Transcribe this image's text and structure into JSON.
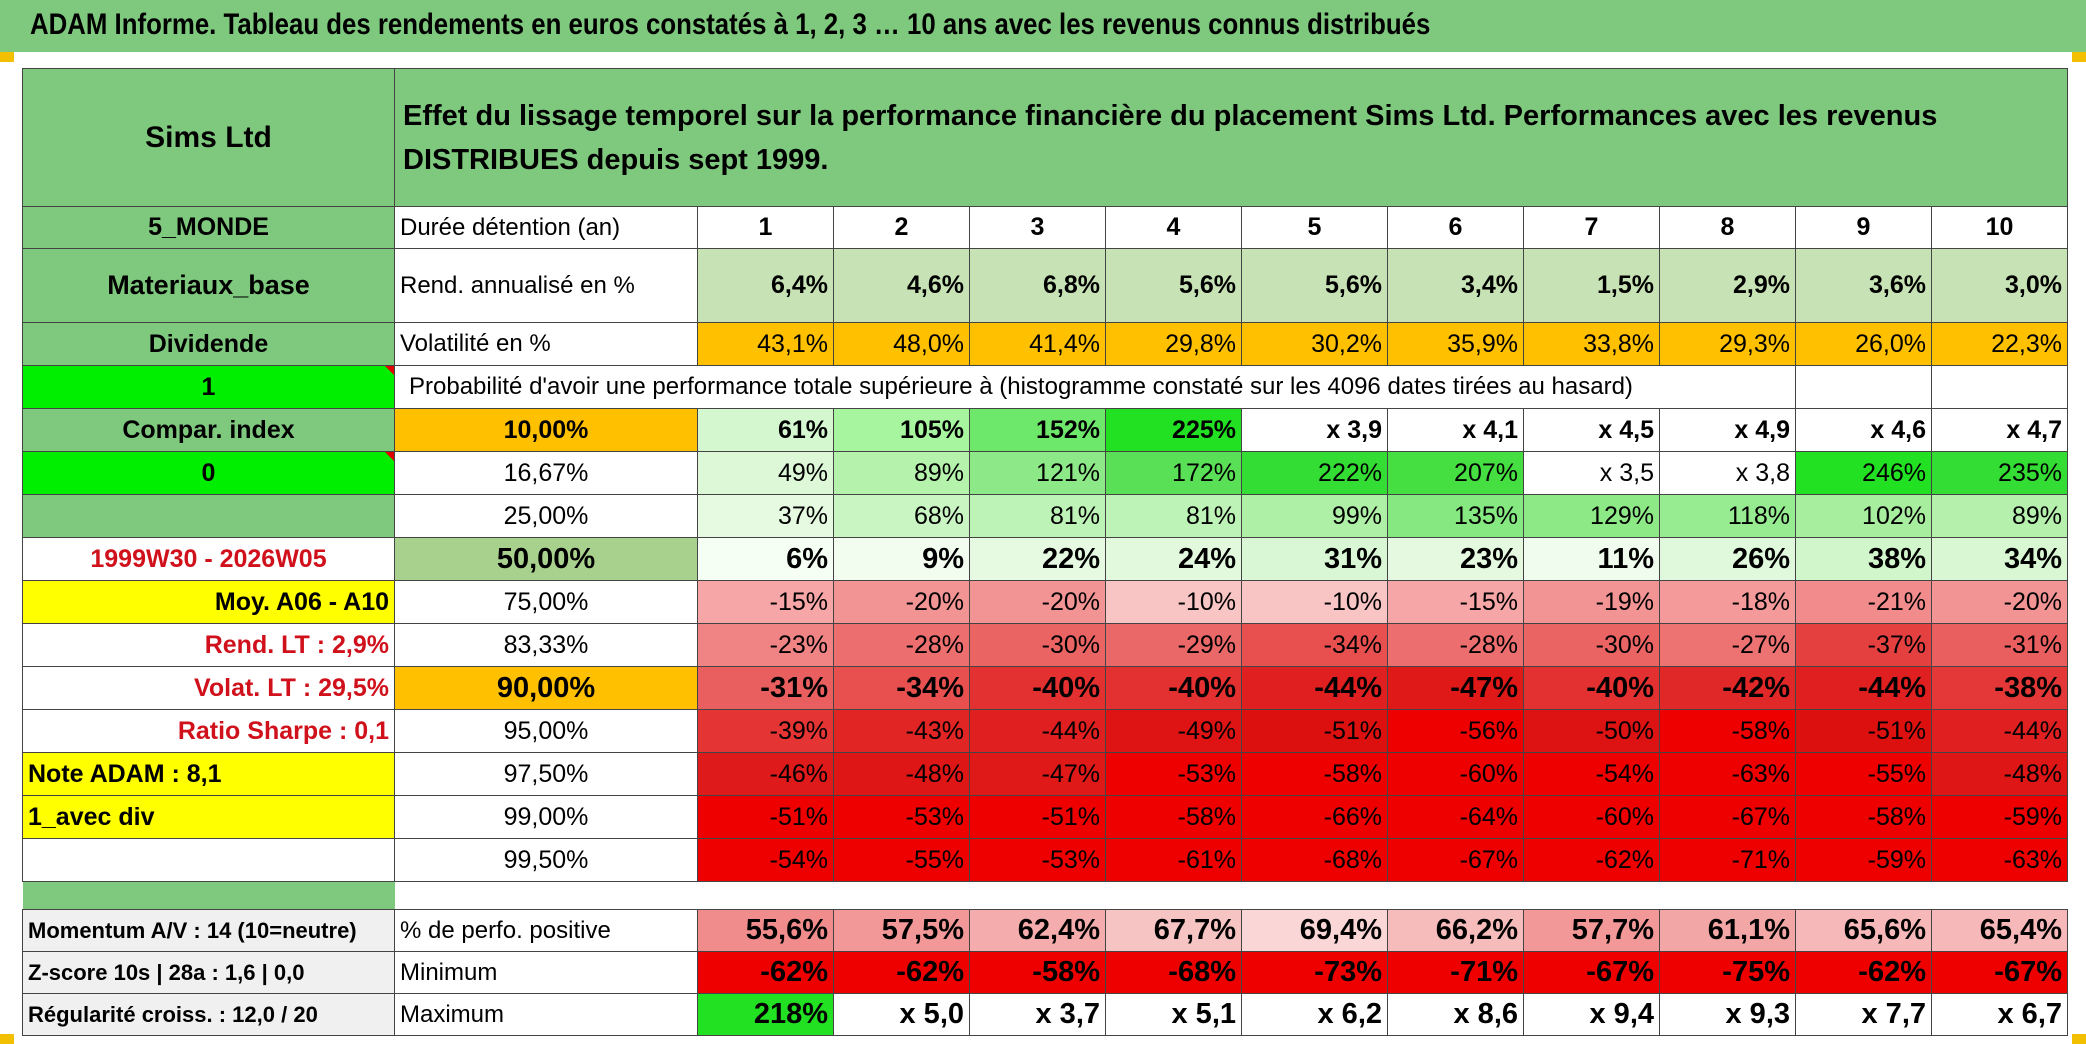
{
  "title": "ADAM Informe. Tableau des rendements en euros constatés à 1, 2, 3 … 10 ans avec les revenus connus distribués",
  "header": {
    "fund_name": "Sims Ltd",
    "description": "Effet du lissage temporel sur la performance financière du placement Sims Ltd. Performances avec les revenus DISTRIBUES depuis sept 1999."
  },
  "left": {
    "region": "5_MONDE",
    "sector": "Materiaux_base",
    "income_type": "Dividende",
    "selector_value": "1",
    "compar_label": "Compar. index",
    "compar_value": "0",
    "empty": "",
    "period": "1999W30 - 2026W05",
    "moy": "Moy. A06 - A10",
    "rend_lt": "Rend. LT :   2,9%",
    "volat_lt": "Volat. LT :   29,5%",
    "sharpe": "Ratio Sharpe :    0,1",
    "note": "Note ADAM : 8,1",
    "avec_div": "1_avec div"
  },
  "rows": {
    "duree": {
      "label": "Durée détention (an)",
      "values": [
        "1",
        "2",
        "3",
        "4",
        "5",
        "6",
        "7",
        "8",
        "9",
        "10"
      ]
    },
    "rend": {
      "label": "Rend. annualisé en %",
      "values": [
        "6,4%",
        "4,6%",
        "6,8%",
        "5,6%",
        "5,6%",
        "3,4%",
        "1,5%",
        "2,9%",
        "3,6%",
        "3,0%"
      ]
    },
    "vol": {
      "label": "Volatilité en %",
      "values": [
        "43,1%",
        "48,0%",
        "41,4%",
        "29,8%",
        "30,2%",
        "35,9%",
        "33,8%",
        "29,3%",
        "26,0%",
        "22,3%"
      ],
      "colors": [
        "#ffc000",
        "#ffc000",
        "#ffc000",
        "#ffc000",
        "#ffc000",
        "#ffc000",
        "#ffc000",
        "#ffc000",
        "#ffc000",
        "#ffc000"
      ]
    },
    "prob_header": "Probabilité d'avoir une performance totale supérieure à (histogramme constaté sur les 4096 dates tirées au hasard)"
  },
  "percentiles": [
    {
      "p": "10,00%",
      "pcolor": "#ffc000",
      "bold": true,
      "values": [
        "61%",
        "105%",
        "152%",
        "225%",
        "x 3,9",
        "x 4,1",
        "x 4,5",
        "x 4,9",
        "x 4,6",
        "x 4,7"
      ],
      "colors": [
        "#d5f7d0",
        "#a8f5a0",
        "#6ee86a",
        "#22e022",
        "#ffffff",
        "#ffffff",
        "#ffffff",
        "#ffffff",
        "#ffffff",
        "#ffffff"
      ]
    },
    {
      "p": "16,67%",
      "pcolor": "#ffffff",
      "bold": false,
      "values": [
        "49%",
        "89%",
        "121%",
        "172%",
        "222%",
        "207%",
        "x 3,5",
        "x 3,8",
        "246%",
        "235%"
      ],
      "colors": [
        "#dcf8d6",
        "#b5f3ad",
        "#8de888",
        "#5ae056",
        "#33dd33",
        "#45df41",
        "#ffffff",
        "#ffffff",
        "#22e022",
        "#33dd33"
      ]
    },
    {
      "p": "25,00%",
      "pcolor": "#ffffff",
      "bold": false,
      "values": [
        "37%",
        "68%",
        "81%",
        "81%",
        "99%",
        "135%",
        "129%",
        "118%",
        "102%",
        "89%"
      ],
      "colors": [
        "#e6fae2",
        "#c9f5c3",
        "#bdf3b7",
        "#bdf3b7",
        "#aef0a6",
        "#86e880",
        "#8ce986",
        "#97eb91",
        "#a8ee9f",
        "#b5f0ad"
      ]
    },
    {
      "p": "50,00%",
      "pcolor": "#a9d18e",
      "bold": true,
      "big": true,
      "values": [
        "6%",
        "9%",
        "22%",
        "24%",
        "31%",
        "23%",
        "11%",
        "26%",
        "38%",
        "34%"
      ],
      "colors": [
        "#f6fff4",
        "#f2fdf0",
        "#e6fae2",
        "#e2f9de",
        "#d9f7d4",
        "#e4f9e0",
        "#f0fcee",
        "#e0f8dc",
        "#d2f6cc",
        "#d8f7d2"
      ]
    },
    {
      "p": "75,00%",
      "pcolor": "#ffffff",
      "bold": false,
      "values": [
        "-15%",
        "-20%",
        "-20%",
        "-10%",
        "-10%",
        "-15%",
        "-19%",
        "-18%",
        "-21%",
        "-20%"
      ],
      "colors": [
        "#f6a6a6",
        "#f39494",
        "#f39494",
        "#f8c4c4",
        "#f8c4c4",
        "#f6a6a6",
        "#f39494",
        "#f49a9a",
        "#f28c8c",
        "#f39494"
      ]
    },
    {
      "p": "83,33%",
      "pcolor": "#ffffff",
      "bold": false,
      "values": [
        "-23%",
        "-28%",
        "-30%",
        "-29%",
        "-34%",
        "-28%",
        "-30%",
        "-27%",
        "-37%",
        "-31%"
      ],
      "colors": [
        "#f08484",
        "#ec6e6e",
        "#ea6464",
        "#eb6868",
        "#e85050",
        "#ec6e6e",
        "#ea6464",
        "#ed7272",
        "#e54040",
        "#e95e5e"
      ]
    },
    {
      "p": "90,00%",
      "pcolor": "#ffc000",
      "bold": true,
      "big": true,
      "values": [
        "-31%",
        "-34%",
        "-40%",
        "-40%",
        "-44%",
        "-47%",
        "-40%",
        "-42%",
        "-44%",
        "-38%"
      ],
      "colors": [
        "#e95e5e",
        "#e85050",
        "#e33030",
        "#e33030",
        "#e02020",
        "#df1818",
        "#e33030",
        "#e12828",
        "#e02020",
        "#e43838"
      ]
    },
    {
      "p": "95,00%",
      "pcolor": "#ffffff",
      "bold": false,
      "values": [
        "-39%",
        "-43%",
        "-44%",
        "-49%",
        "-51%",
        "-56%",
        "-50%",
        "-58%",
        "-51%",
        "-44%"
      ],
      "colors": [
        "#e43434",
        "#e12424",
        "#e02020",
        "#de1414",
        "#dd1010",
        "#ee0000",
        "#dd1212",
        "#ee0000",
        "#dd1010",
        "#e02020"
      ]
    },
    {
      "p": "97,50%",
      "pcolor": "#ffffff",
      "bold": false,
      "values": [
        "-46%",
        "-48%",
        "-47%",
        "-53%",
        "-58%",
        "-60%",
        "-54%",
        "-63%",
        "-55%",
        "-48%"
      ],
      "colors": [
        "#df1a1a",
        "#de1616",
        "#df1818",
        "#ee0000",
        "#ee0000",
        "#ee0000",
        "#ee0000",
        "#ee0000",
        "#ee0000",
        "#de1616"
      ]
    },
    {
      "p": "99,00%",
      "pcolor": "#ffffff",
      "bold": false,
      "values": [
        "-51%",
        "-53%",
        "-51%",
        "-58%",
        "-66%",
        "-64%",
        "-60%",
        "-67%",
        "-58%",
        "-59%"
      ],
      "colors": [
        "#ee0000",
        "#ee0000",
        "#ee0000",
        "#ee0000",
        "#ee0000",
        "#ee0000",
        "#ee0000",
        "#ee0000",
        "#ee0000",
        "#ee0000"
      ]
    },
    {
      "p": "99,50%",
      "pcolor": "#ffffff",
      "bold": false,
      "values": [
        "-54%",
        "-55%",
        "-53%",
        "-61%",
        "-68%",
        "-67%",
        "-62%",
        "-71%",
        "-59%",
        "-63%"
      ],
      "colors": [
        "#ee0000",
        "#ee0000",
        "#ee0000",
        "#ee0000",
        "#ee0000",
        "#ee0000",
        "#ee0000",
        "#ee0000",
        "#ee0000",
        "#ee0000"
      ]
    }
  ],
  "bottom": [
    {
      "left": "Momentum A/V : 14 (10=neutre)",
      "label": "% de perfo. positive",
      "values": [
        "55,6%",
        "57,5%",
        "62,4%",
        "67,7%",
        "69,4%",
        "66,2%",
        "57,7%",
        "61,1%",
        "65,6%",
        "65,4%"
      ],
      "colors": [
        "#f08c8c",
        "#f29898",
        "#f4acac",
        "#f7c4c4",
        "#fad6d6",
        "#f6bcbc",
        "#f29898",
        "#f3a6a6",
        "#f6b8b8",
        "#f6b8b8"
      ]
    },
    {
      "left": "Z-score 10s | 28a : 1,6 | 0,0",
      "label": "Minimum",
      "values": [
        "-62%",
        "-62%",
        "-58%",
        "-68%",
        "-73%",
        "-71%",
        "-67%",
        "-75%",
        "-62%",
        "-67%"
      ],
      "colors": [
        "#ee0000",
        "#ee0000",
        "#ee0000",
        "#ee0000",
        "#ee0000",
        "#ee0000",
        "#ee0000",
        "#ee0000",
        "#ee0000",
        "#ee0000"
      ]
    },
    {
      "left": "Régularité croiss. : 12,0 / 20",
      "label": "Maximum",
      "values": [
        "218%",
        "x 5,0",
        "x 3,7",
        "x 5,1",
        "x 6,2",
        "x 8,6",
        "x 9,4",
        "x 9,3",
        "x 7,7",
        "x 6,7"
      ],
      "colors": [
        "#22e022",
        "#ffffff",
        "#ffffff",
        "#ffffff",
        "#ffffff",
        "#ffffff",
        "#ffffff",
        "#ffffff",
        "#ffffff",
        "#ffffff"
      ]
    }
  ]
}
